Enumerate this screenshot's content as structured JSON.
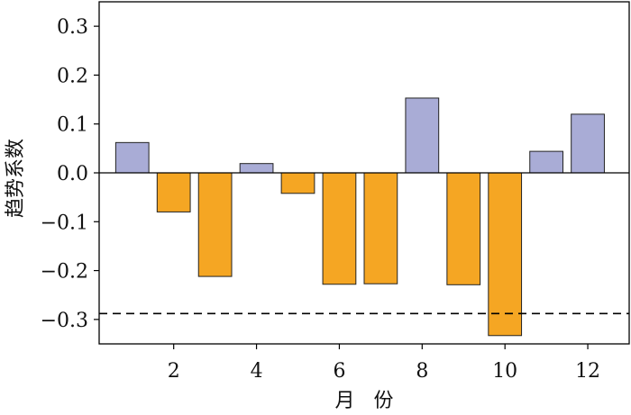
{
  "chart_data": {
    "type": "bar",
    "x": [
      1,
      2,
      3,
      4,
      5,
      6,
      7,
      8,
      9,
      10,
      11,
      12
    ],
    "values": [
      0.062,
      -0.08,
      -0.212,
      0.019,
      -0.042,
      -0.228,
      -0.227,
      0.153,
      -0.229,
      -0.333,
      0.044,
      0.12
    ],
    "xticks": [
      2,
      4,
      6,
      8,
      10,
      12
    ],
    "xtick_labels": [
      "2",
      "4",
      "6",
      "8",
      "10",
      "12"
    ],
    "yticks": [
      0.3,
      0.2,
      0.1,
      0.0,
      -0.1,
      -0.2,
      -0.3
    ],
    "ytick_labels": [
      "0.3",
      "0.2",
      "0.1",
      "0.0",
      "−0.1",
      "−0.2",
      "−0.3"
    ],
    "xlabel": "月 份",
    "ylabel": "趋势系数",
    "xlim": [
      0.2,
      13.0
    ],
    "ylim": [
      -0.35,
      0.35
    ],
    "reference_line": {
      "y": -0.288,
      "style": "dashed"
    },
    "zero_line": true,
    "grid": false,
    "positive_color": "#a9acd6",
    "negative_color": "#f5a623",
    "bar_edge_color": "#222222"
  }
}
